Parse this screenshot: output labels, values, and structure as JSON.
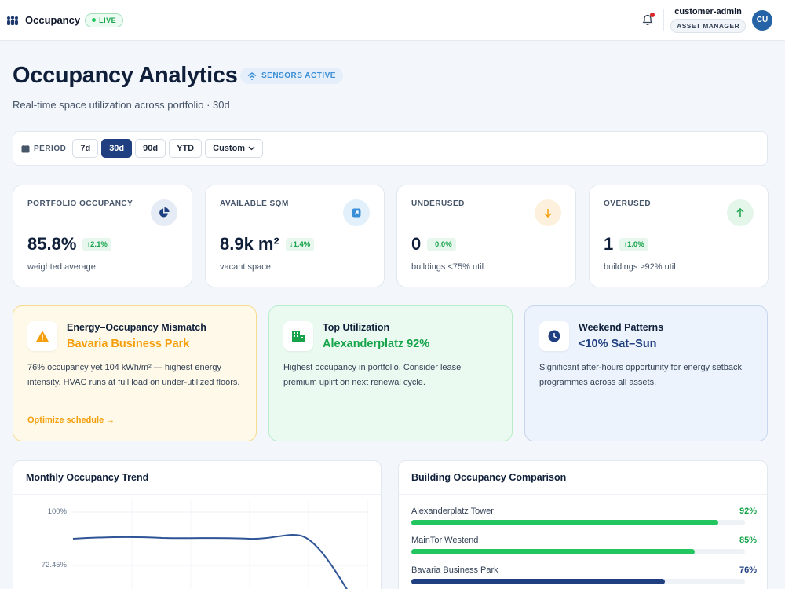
{
  "app": {
    "name": "Occupancy",
    "live_badge": "LIVE"
  },
  "user": {
    "name": "customer-admin",
    "role": "ASSET MANAGER",
    "initials": "CU",
    "notification_dot": true
  },
  "header": {
    "title": "Occupancy Analytics",
    "badge": "SENSORS ACTIVE",
    "subtitle": "Real-time space utilization across portfolio · 30d"
  },
  "period": {
    "label": "PERIOD",
    "options": [
      "7d",
      "30d",
      "90d",
      "YTD",
      "Custom"
    ],
    "selected": "30d"
  },
  "kpis": [
    {
      "label": "PORTFOLIO OCCUPANCY",
      "value": "85.8%",
      "delta": "2.1%",
      "delta_dir": "up",
      "sub": "weighted average",
      "icon": "pie-chart-icon"
    },
    {
      "label": "AVAILABLE SQM",
      "value": "8.9k m²",
      "delta": "1.4%",
      "delta_dir": "down",
      "sub": "vacant space",
      "icon": "expand-icon"
    },
    {
      "label": "UNDERUSED",
      "value": "0",
      "delta": "0.0%",
      "delta_dir": "up",
      "sub": "buildings <75% util",
      "icon": "arrow-down-icon"
    },
    {
      "label": "OVERUSED",
      "value": "1",
      "delta": "1.0%",
      "delta_dir": "up",
      "sub": "buildings ≥92% util",
      "icon": "arrow-up-icon"
    }
  ],
  "insights": [
    {
      "title": "Energy–Occupancy Mismatch",
      "highlight": "Bavaria Business Park",
      "body": "76% occupancy yet 104 kWh/m² — highest energy intensity. HVAC runs at full load on under-utilized floors.",
      "action": "Optimize schedule →",
      "icon": "warning-icon",
      "color": "#f59e0b"
    },
    {
      "title": "Top Utilization",
      "highlight": "Alexanderplatz 92%",
      "body": "Highest occupancy in portfolio. Consider lease premium uplift on next renewal cycle.",
      "icon": "building-icon",
      "color": "#16a34a"
    },
    {
      "title": "Weekend Patterns",
      "highlight": "<10% Sat–Sun",
      "body": "Significant after-hours opportunity for energy setback programmes across all assets.",
      "icon": "clock-icon",
      "color": "#1f3f80"
    }
  ],
  "trend": {
    "title": "Monthly Occupancy Trend",
    "y_ticks": [
      "100%",
      "72.45%"
    ]
  },
  "comparison": {
    "title": "Building Occupancy Comparison",
    "rows": [
      {
        "name": "Alexanderplatz Tower",
        "value": "92%",
        "pct": 92,
        "color": "#22c55e"
      },
      {
        "name": "MainTor Westend",
        "value": "85%",
        "pct": 85,
        "color": "#22c55e"
      },
      {
        "name": "Bavaria Business Park",
        "value": "76%",
        "pct": 76,
        "color": "#1f3f80"
      }
    ]
  },
  "colors": {
    "primary": "#1f3f80",
    "success": "#16a34a",
    "warning": "#f59e0b",
    "accent": "#3b8fd6"
  }
}
